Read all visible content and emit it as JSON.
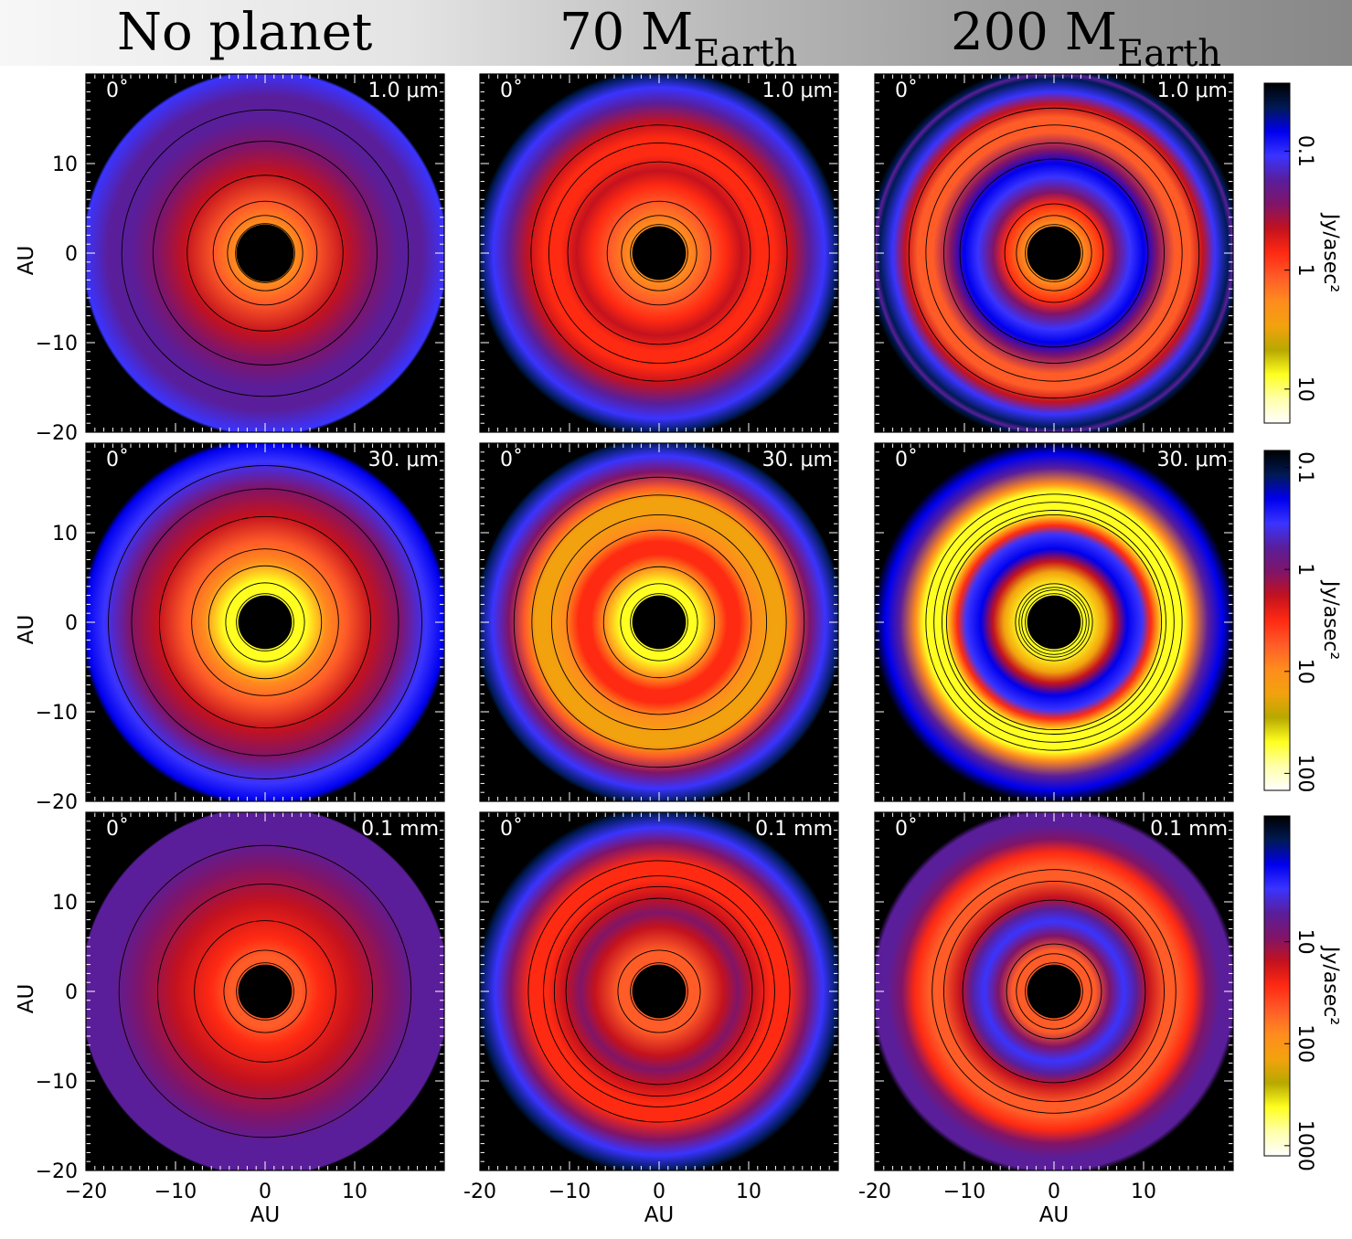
{
  "header": {
    "titles": [
      {
        "text": "No planet",
        "sub": ""
      },
      {
        "text": "70 M",
        "sub": "Earth"
      },
      {
        "text": "200 M",
        "sub": "Earth"
      }
    ]
  },
  "chart_data": {
    "type": "heatmap",
    "xlabel": "AU",
    "ylabel": "AU",
    "xlim": [
      -20,
      20
    ],
    "ylim": [
      -20,
      20
    ],
    "xticks": [
      "-20",
      "-10",
      "0",
      "10"
    ],
    "xticks_alt": [
      "-20",
      "−10",
      "0",
      "10"
    ],
    "yticks": [
      "10",
      "0",
      "−10",
      "−20"
    ],
    "yticks_values": [
      10,
      0,
      -10,
      -20
    ],
    "inclination_label": "0˚",
    "rows": [
      {
        "wavelength": "1.0 μm",
        "colorbar": {
          "label": "Jy/asec²",
          "ticks": [
            "0.1",
            "1",
            "10"
          ],
          "tick_pos": [
            0.2,
            0.55,
            0.9
          ]
        }
      },
      {
        "wavelength": "30. μm",
        "colorbar": {
          "label": "Jy/asec²",
          "ticks": [
            "0.1",
            "1",
            "10",
            "100"
          ],
          "tick_pos": [
            0.05,
            0.35,
            0.65,
            0.95
          ]
        }
      },
      {
        "wavelength": "0.1 mm",
        "colorbar": {
          "label": "Jy/asec²",
          "ticks": [
            "10",
            "100",
            "1000"
          ],
          "tick_pos": [
            0.37,
            0.67,
            0.97
          ]
        }
      }
    ],
    "colormap": [
      "#000000",
      "#001a55",
      "#0000ee",
      "#3a34ff",
      "#5a1e9a",
      "#801468",
      "#c4121e",
      "#ff2a12",
      "#ff5c28",
      "#ff8c1e",
      "#f2a20e",
      "#b8a800",
      "#ffff20",
      "#ffffaa",
      "#ffffff"
    ],
    "panels": [
      {
        "row": 0,
        "col": 0,
        "planet": "No planet",
        "hole_radius": 3.2,
        "profile": [
          [
            2.8,
            0.63
          ],
          [
            3.4,
            0.64
          ],
          [
            5.5,
            0.58
          ],
          [
            9,
            0.46
          ],
          [
            12,
            0.37
          ],
          [
            15,
            0.31
          ],
          [
            17.5,
            0.26
          ],
          [
            20.2,
            0.24
          ],
          [
            20.5,
            0
          ]
        ],
        "contours": [
          3.3,
          4.2,
          5.8,
          8.7,
          12.5,
          16
        ]
      },
      {
        "row": 0,
        "col": 1,
        "planet": "70 M_Earth",
        "hole_radius": 3.0,
        "profile": [
          [
            2.8,
            0.63
          ],
          [
            3.3,
            0.64
          ],
          [
            5.5,
            0.56
          ],
          [
            7.5,
            0.47
          ],
          [
            9.2,
            0.42
          ],
          [
            11,
            0.47
          ],
          [
            12.8,
            0.5
          ],
          [
            14.6,
            0.44
          ],
          [
            16.8,
            0.32
          ],
          [
            18.5,
            0.2
          ],
          [
            20,
            0.06
          ],
          [
            20.5,
            0
          ]
        ],
        "contours": [
          3.2,
          4.2,
          5.8,
          10.2,
          12.3,
          14.3
        ]
      },
      {
        "row": 0,
        "col": 2,
        "planet": "200 M_Earth",
        "hole_radius": 3.0,
        "profile": [
          [
            2.8,
            0.63
          ],
          [
            3.3,
            0.64
          ],
          [
            5.5,
            0.52
          ],
          [
            6.8,
            0.35
          ],
          [
            8.5,
            0.18
          ],
          [
            10,
            0.16
          ],
          [
            11.5,
            0.35
          ],
          [
            13.5,
            0.57
          ],
          [
            15.2,
            0.56
          ],
          [
            16.6,
            0.4
          ],
          [
            18,
            0.18
          ],
          [
            19.5,
            0.08
          ],
          [
            20,
            0.25
          ],
          [
            20.3,
            0.05
          ]
        ],
        "contours": [
          3.2,
          4.2,
          5.5,
          10.5,
          12.3,
          14.3,
          16.2
        ]
      },
      {
        "row": 1,
        "col": 0,
        "planet": "No planet",
        "hole_radius": 3.0,
        "profile": [
          [
            2.8,
            0.88
          ],
          [
            4.6,
            0.85
          ],
          [
            6.8,
            0.65
          ],
          [
            9,
            0.55
          ],
          [
            12,
            0.45
          ],
          [
            15,
            0.35
          ],
          [
            18,
            0.24
          ],
          [
            20,
            0.12
          ],
          [
            20.6,
            0
          ]
        ],
        "contours": [
          3.2,
          4.4,
          6.3,
          8.2,
          11.8,
          14.9,
          17.5
        ]
      },
      {
        "row": 1,
        "col": 1,
        "planet": "70 M_Earth",
        "hole_radius": 3.0,
        "profile": [
          [
            2.8,
            0.88
          ],
          [
            4.4,
            0.84
          ],
          [
            6.2,
            0.62
          ],
          [
            7.6,
            0.52
          ],
          [
            9,
            0.48
          ],
          [
            10.5,
            0.63
          ],
          [
            12.5,
            0.72
          ],
          [
            13.8,
            0.72
          ],
          [
            15,
            0.58
          ],
          [
            16.8,
            0.35
          ],
          [
            18.6,
            0.2
          ],
          [
            20.2,
            0.04
          ],
          [
            20.6,
            0
          ]
        ],
        "contours": [
          3.2,
          4.3,
          6.2,
          10.3,
          12.0,
          14.2,
          16.2
        ]
      },
      {
        "row": 1,
        "col": 2,
        "planet": "200 M_Earth",
        "hole_radius": 3.0,
        "profile": [
          [
            2.8,
            0.84
          ],
          [
            3.8,
            0.86
          ],
          [
            5.6,
            0.7
          ],
          [
            6.8,
            0.4
          ],
          [
            8.2,
            0.15
          ],
          [
            9.8,
            0.18
          ],
          [
            10.8,
            0.5
          ],
          [
            12.2,
            0.85
          ],
          [
            14.5,
            0.85
          ],
          [
            15.5,
            0.62
          ],
          [
            17.2,
            0.32
          ],
          [
            18.8,
            0.15
          ],
          [
            20.2,
            0.03
          ],
          [
            20.6,
            0
          ]
        ],
        "contours": [
          3.2,
          3.6,
          3.9,
          4.3,
          12.0,
          12.5,
          13.4,
          14.3
        ]
      },
      {
        "row": 2,
        "col": 0,
        "planet": "No planet",
        "hole_radius": 3.0,
        "profile": [
          [
            2.8,
            0.58
          ],
          [
            4,
            0.57
          ],
          [
            6,
            0.52
          ],
          [
            10,
            0.46
          ],
          [
            14,
            0.38
          ],
          [
            17,
            0.31
          ],
          [
            19.5,
            0.26
          ],
          [
            20.5,
            0.25
          ],
          [
            20.7,
            0
          ]
        ],
        "contours": [
          3.2,
          4.6,
          7.9,
          12.0,
          16.3
        ]
      },
      {
        "row": 2,
        "col": 1,
        "planet": "70 M_Earth",
        "hole_radius": 3.0,
        "profile": [
          [
            2.8,
            0.58
          ],
          [
            4.6,
            0.56
          ],
          [
            7.2,
            0.46
          ],
          [
            8.8,
            0.38
          ],
          [
            10.5,
            0.43
          ],
          [
            12.5,
            0.5
          ],
          [
            14.5,
            0.48
          ],
          [
            16.6,
            0.36
          ],
          [
            18.3,
            0.22
          ],
          [
            20,
            0.1
          ],
          [
            20.6,
            0
          ]
        ],
        "contours": [
          3.2,
          4.6,
          10.4,
          11.7,
          12.9,
          14.6
        ]
      },
      {
        "row": 2,
        "col": 2,
        "planet": "200 M_Earth",
        "hole_radius": 3.0,
        "profile": [
          [
            2.8,
            0.58
          ],
          [
            4.6,
            0.54
          ],
          [
            6.2,
            0.38
          ],
          [
            7.8,
            0.2
          ],
          [
            9.2,
            0.28
          ],
          [
            10.5,
            0.45
          ],
          [
            12.5,
            0.56
          ],
          [
            14,
            0.57
          ],
          [
            15.5,
            0.5
          ],
          [
            17,
            0.38
          ],
          [
            18.6,
            0.27
          ],
          [
            20,
            0.3
          ],
          [
            20.6,
            0
          ]
        ],
        "contours": [
          3.2,
          4.2,
          5.3,
          10.2,
          12.3,
          13.6
        ]
      }
    ]
  }
}
